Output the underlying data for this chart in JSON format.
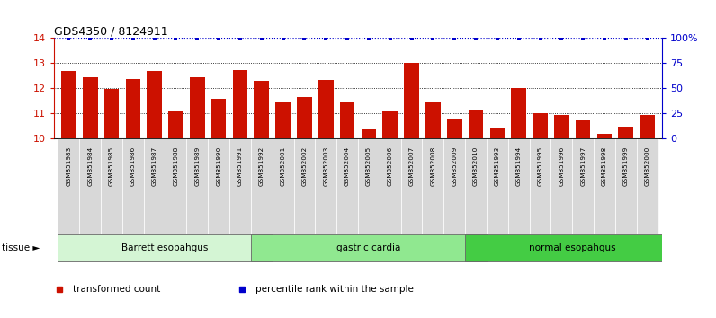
{
  "title": "GDS4350 / 8124911",
  "samples": [
    "GSM851983",
    "GSM851984",
    "GSM851985",
    "GSM851986",
    "GSM851987",
    "GSM851988",
    "GSM851989",
    "GSM851990",
    "GSM851991",
    "GSM851992",
    "GSM852001",
    "GSM852002",
    "GSM852003",
    "GSM852004",
    "GSM852005",
    "GSM852006",
    "GSM852007",
    "GSM852008",
    "GSM852009",
    "GSM852010",
    "GSM851993",
    "GSM851994",
    "GSM851995",
    "GSM851996",
    "GSM851997",
    "GSM851998",
    "GSM851999",
    "GSM852000"
  ],
  "bar_values": [
    12.68,
    12.45,
    11.98,
    12.35,
    12.68,
    11.08,
    12.45,
    11.58,
    12.72,
    12.28,
    11.45,
    11.65,
    12.32,
    11.42,
    10.35,
    11.08,
    13.02,
    11.48,
    10.78,
    11.1,
    10.38,
    12.02,
    11.02,
    10.95,
    10.72,
    10.18,
    10.45,
    10.92
  ],
  "percentile_values": [
    100,
    100,
    100,
    100,
    100,
    100,
    100,
    100,
    100,
    100,
    100,
    100,
    100,
    100,
    100,
    100,
    100,
    100,
    100,
    100,
    100,
    100,
    100,
    100,
    100,
    100,
    100,
    100
  ],
  "groups": [
    {
      "label": "Barrett esopahgus",
      "start": 0,
      "end": 9,
      "color": "#d4f5d4"
    },
    {
      "label": "gastric cardia",
      "start": 9,
      "end": 19,
      "color": "#90e890"
    },
    {
      "label": "normal esopahgus",
      "start": 19,
      "end": 28,
      "color": "#44cc44"
    }
  ],
  "bar_color": "#cc1100",
  "percentile_color": "#0000cc",
  "ylim_left": [
    10,
    14
  ],
  "ylim_right": [
    0,
    100
  ],
  "yticks_left": [
    10,
    11,
    12,
    13,
    14
  ],
  "yticks_right": [
    0,
    25,
    50,
    75,
    100
  ],
  "ytick_labels_right": [
    "0",
    "25",
    "50",
    "75",
    "100%"
  ],
  "grid_vals": [
    11,
    12,
    13
  ],
  "background_color": "#ffffff",
  "plot_bg_color": "#ffffff",
  "xticklabel_bg": "#d8d8d8",
  "legend_items": [
    {
      "label": "transformed count",
      "color": "#cc1100",
      "marker": "s"
    },
    {
      "label": "percentile rank within the sample",
      "color": "#0000cc",
      "marker": "s"
    }
  ]
}
